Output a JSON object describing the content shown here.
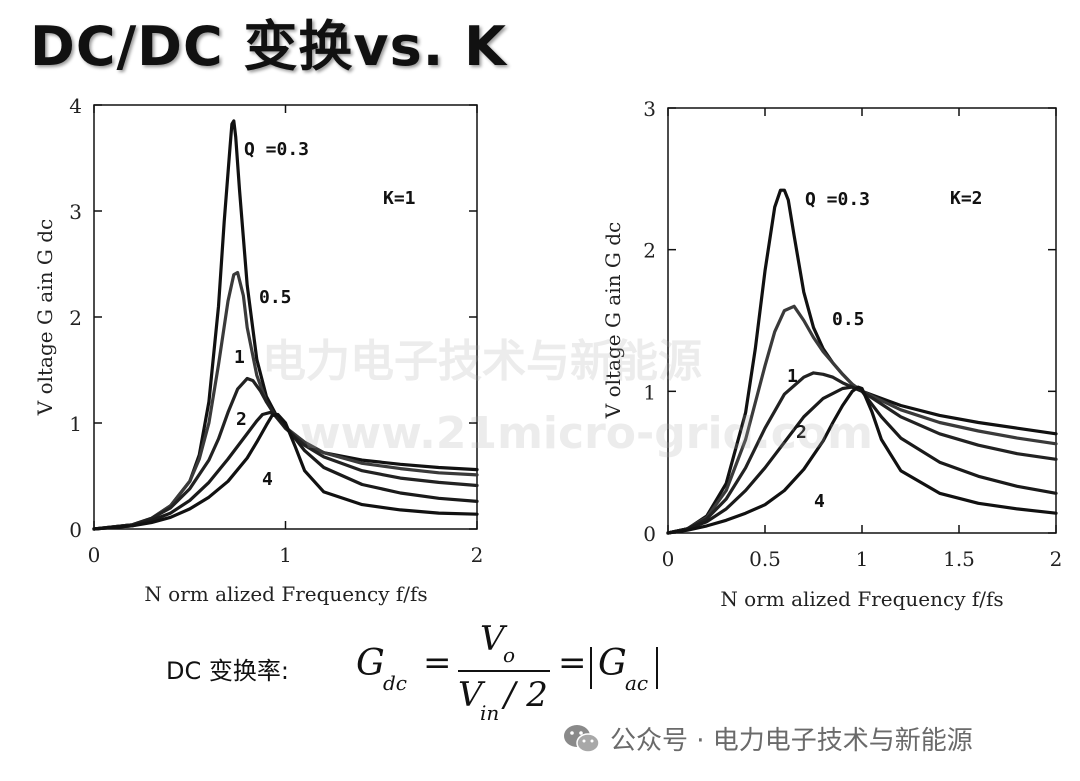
{
  "title": "DC/DC 变换vs. K",
  "watermark": {
    "line1": "电力电子技术与新能源",
    "line2": "www.21micro-grid.com"
  },
  "formula": {
    "label": "DC 变换率:",
    "lhs_symbol": "G",
    "lhs_sub": "dc",
    "num_symbol": "V",
    "num_sub": "o",
    "den_symbol": "V",
    "den_sub": "in",
    "den_tail": "/ 2",
    "eq1": "=",
    "eq2": "=",
    "rhs_symbol": "G",
    "rhs_sub": "ac"
  },
  "footer": {
    "icon": "wechat-icon",
    "text": "公众号 · 电力电子技术与新能源"
  },
  "colors": {
    "curve": "#111111",
    "axis": "#111111",
    "title_shadow": "#9a9a9a"
  },
  "chart_data": [
    {
      "type": "line",
      "annotation": "K=1",
      "xlabel": "N orm alized Frequency  f/fs",
      "ylabel": "V oltage G ain G dc",
      "xlim": [
        0,
        2
      ],
      "ylim": [
        0,
        4
      ],
      "xticks": [
        0,
        1,
        2
      ],
      "xtick_labels": [
        "0",
        "1",
        "2"
      ],
      "yticks": [
        0,
        1,
        2,
        3,
        4
      ],
      "ytick_labels": [
        "0",
        "1",
        "2",
        "3",
        "4"
      ],
      "series": [
        {
          "name": "Q=0.3",
          "label": "Q =0.3",
          "x": [
            0,
            0.2,
            0.3,
            0.4,
            0.5,
            0.55,
            0.6,
            0.65,
            0.68,
            0.71,
            0.72,
            0.73,
            0.74,
            0.76,
            0.8,
            0.85,
            0.9,
            0.95,
            1.0,
            1.1,
            1.2,
            1.4,
            1.6,
            1.8,
            2.0
          ],
          "y": [
            0,
            0.04,
            0.1,
            0.22,
            0.45,
            0.7,
            1.2,
            2.1,
            2.9,
            3.6,
            3.82,
            3.85,
            3.7,
            3.2,
            2.3,
            1.6,
            1.25,
            1.08,
            0.95,
            0.8,
            0.72,
            0.65,
            0.61,
            0.58,
            0.56
          ]
        },
        {
          "name": "Q=0.5",
          "label": "0.5",
          "x": [
            0,
            0.2,
            0.3,
            0.4,
            0.5,
            0.55,
            0.6,
            0.65,
            0.7,
            0.73,
            0.75,
            0.78,
            0.8,
            0.85,
            0.9,
            0.95,
            1.0,
            1.1,
            1.2,
            1.4,
            1.6,
            1.8,
            2.0
          ],
          "y": [
            0,
            0.04,
            0.1,
            0.22,
            0.45,
            0.66,
            1.0,
            1.55,
            2.15,
            2.4,
            2.42,
            2.2,
            1.9,
            1.45,
            1.2,
            1.06,
            0.96,
            0.82,
            0.72,
            0.62,
            0.57,
            0.53,
            0.51
          ]
        },
        {
          "name": "Q=1",
          "label": "1",
          "x": [
            0,
            0.2,
            0.3,
            0.4,
            0.5,
            0.6,
            0.65,
            0.7,
            0.75,
            0.8,
            0.83,
            0.87,
            0.9,
            0.95,
            1.0,
            1.1,
            1.2,
            1.4,
            1.6,
            1.8,
            2.0
          ],
          "y": [
            0,
            0.04,
            0.1,
            0.2,
            0.38,
            0.65,
            0.85,
            1.1,
            1.32,
            1.42,
            1.4,
            1.3,
            1.2,
            1.06,
            0.95,
            0.79,
            0.68,
            0.55,
            0.48,
            0.44,
            0.41
          ]
        },
        {
          "name": "Q=2",
          "label": "2",
          "x": [
            0,
            0.2,
            0.3,
            0.4,
            0.5,
            0.6,
            0.7,
            0.8,
            0.85,
            0.88,
            0.92,
            0.95,
            1.0,
            1.1,
            1.2,
            1.4,
            1.6,
            1.8,
            2.0
          ],
          "y": [
            0,
            0.03,
            0.08,
            0.15,
            0.27,
            0.44,
            0.66,
            0.9,
            1.02,
            1.08,
            1.1,
            1.07,
            0.97,
            0.74,
            0.58,
            0.42,
            0.34,
            0.29,
            0.26
          ]
        },
        {
          "name": "Q=4",
          "label": "4",
          "x": [
            0,
            0.2,
            0.3,
            0.4,
            0.5,
            0.6,
            0.7,
            0.8,
            0.85,
            0.9,
            0.93,
            0.96,
            1.0,
            1.05,
            1.1,
            1.2,
            1.4,
            1.6,
            1.8,
            2.0
          ],
          "y": [
            0,
            0.03,
            0.06,
            0.11,
            0.19,
            0.3,
            0.45,
            0.67,
            0.82,
            0.98,
            1.07,
            1.08,
            1.0,
            0.78,
            0.55,
            0.35,
            0.23,
            0.18,
            0.15,
            0.14
          ]
        }
      ]
    },
    {
      "type": "line",
      "annotation": "K=2",
      "xlabel": "N orm alized Frequency  f/fs",
      "ylabel": "V oltage G ain G dc",
      "xlim": [
        0,
        2
      ],
      "ylim": [
        0,
        3
      ],
      "xticks": [
        0,
        0.5,
        1,
        1.5,
        2
      ],
      "xtick_labels": [
        "0",
        "0.5",
        "1",
        "1.5",
        "2"
      ],
      "yticks": [
        0,
        1,
        2,
        3
      ],
      "ytick_labels": [
        "0",
        "1",
        "2",
        "3"
      ],
      "series": [
        {
          "name": "Q=0.3",
          "label": "Q =0.3",
          "x": [
            0,
            0.1,
            0.2,
            0.3,
            0.4,
            0.45,
            0.5,
            0.55,
            0.58,
            0.6,
            0.62,
            0.65,
            0.7,
            0.75,
            0.8,
            0.85,
            0.9,
            0.95,
            1.0,
            1.2,
            1.4,
            1.6,
            1.8,
            2.0
          ],
          "y": [
            0,
            0.03,
            0.12,
            0.35,
            0.85,
            1.3,
            1.85,
            2.3,
            2.42,
            2.42,
            2.35,
            2.1,
            1.7,
            1.45,
            1.3,
            1.2,
            1.12,
            1.05,
            1.0,
            0.9,
            0.83,
            0.78,
            0.74,
            0.7
          ]
        },
        {
          "name": "Q=0.5",
          "label": "0.5",
          "x": [
            0,
            0.1,
            0.2,
            0.3,
            0.4,
            0.5,
            0.55,
            0.6,
            0.65,
            0.7,
            0.75,
            0.8,
            0.85,
            0.9,
            0.95,
            1.0,
            1.2,
            1.4,
            1.6,
            1.8,
            2.0
          ],
          "y": [
            0,
            0.03,
            0.11,
            0.3,
            0.66,
            1.18,
            1.42,
            1.57,
            1.6,
            1.5,
            1.38,
            1.28,
            1.2,
            1.12,
            1.05,
            1.0,
            0.87,
            0.78,
            0.72,
            0.67,
            0.63
          ]
        },
        {
          "name": "Q=1",
          "label": "1",
          "x": [
            0,
            0.1,
            0.2,
            0.3,
            0.4,
            0.5,
            0.6,
            0.7,
            0.75,
            0.8,
            0.85,
            0.9,
            0.95,
            1.0,
            1.2,
            1.4,
            1.6,
            1.8,
            2.0
          ],
          "y": [
            0,
            0.03,
            0.1,
            0.24,
            0.46,
            0.74,
            0.98,
            1.1,
            1.13,
            1.12,
            1.1,
            1.06,
            1.03,
            1.0,
            0.82,
            0.7,
            0.62,
            0.56,
            0.52
          ]
        },
        {
          "name": "Q=2",
          "label": "2",
          "x": [
            0,
            0.1,
            0.2,
            0.3,
            0.4,
            0.5,
            0.6,
            0.7,
            0.8,
            0.9,
            0.95,
            1.0,
            1.1,
            1.2,
            1.4,
            1.6,
            1.8,
            2.0
          ],
          "y": [
            0,
            0.03,
            0.08,
            0.17,
            0.3,
            0.46,
            0.64,
            0.82,
            0.95,
            1.02,
            1.03,
            1.0,
            0.82,
            0.67,
            0.5,
            0.4,
            0.33,
            0.28
          ]
        },
        {
          "name": "Q=4",
          "label": "4",
          "x": [
            0,
            0.1,
            0.2,
            0.3,
            0.4,
            0.5,
            0.6,
            0.7,
            0.8,
            0.85,
            0.9,
            0.95,
            0.98,
            1.0,
            1.05,
            1.1,
            1.2,
            1.4,
            1.6,
            1.8,
            2.0
          ],
          "y": [
            0,
            0.02,
            0.05,
            0.09,
            0.14,
            0.2,
            0.3,
            0.45,
            0.65,
            0.78,
            0.9,
            1.0,
            1.03,
            1.02,
            0.86,
            0.66,
            0.44,
            0.28,
            0.21,
            0.17,
            0.14
          ]
        }
      ]
    }
  ]
}
